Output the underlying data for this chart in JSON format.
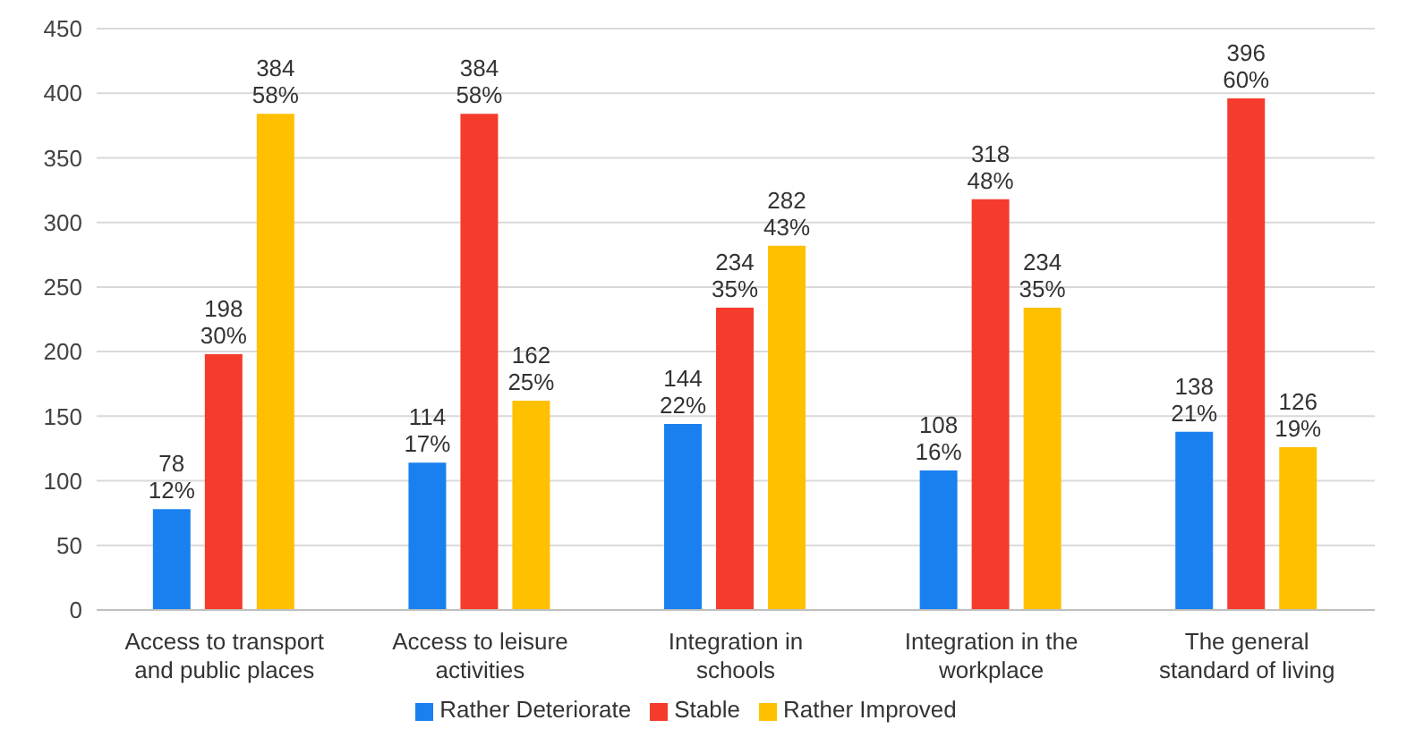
{
  "chart_data": {
    "type": "bar",
    "categories": [
      "Access to transport and public places",
      "Access to leisure activities",
      "Integration in schools",
      "Integration in the workplace",
      "The general standard of living"
    ],
    "series": [
      {
        "name": "Rather Deteriorate",
        "color": "#1a80f0",
        "values": [
          78,
          114,
          144,
          108,
          138
        ],
        "value_labels": [
          "78\n12%",
          "114\n17%",
          "144\n22%",
          "108\n16%",
          "138\n21%"
        ]
      },
      {
        "name": "Stable",
        "color": "#f43b2c",
        "values": [
          198,
          384,
          234,
          318,
          396
        ],
        "value_labels": [
          "198\n30%",
          "384\n58%",
          "234\n35%",
          "318\n48%",
          "396\n60%"
        ]
      },
      {
        "name": "Rather Improved",
        "color": "#ffc000",
        "values": [
          384,
          162,
          282,
          234,
          126
        ],
        "value_labels": [
          "384\n58%",
          "162\n25%",
          "282\n43%",
          "234\n35%",
          "126\n19%"
        ]
      }
    ],
    "ylim": [
      0,
      450
    ],
    "yticks": [
      0,
      50,
      100,
      150,
      200,
      250,
      300,
      350,
      400,
      450
    ],
    "grid": "y",
    "legend": "bottom"
  }
}
